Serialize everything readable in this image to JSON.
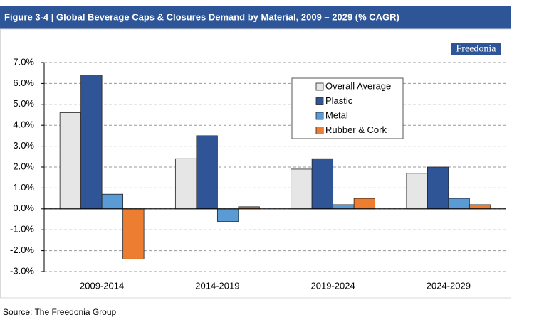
{
  "chart_data": {
    "type": "bar",
    "title": "Figure 3-4 | Global Beverage Caps & Closures Demand by Material, 2009 – 2029 (% CAGR)",
    "logo": "Freedonia",
    "source": "Source: The Freedonia Group",
    "categories": [
      "2009-2014",
      "2014-2019",
      "2019-2024",
      "2024-2029"
    ],
    "series": [
      {
        "name": "Overall Average",
        "color": "#e7e6e6",
        "values": [
          4.6,
          2.4,
          1.9,
          1.7
        ]
      },
      {
        "name": "Plastic",
        "color": "#2f5597",
        "values": [
          6.4,
          3.5,
          2.4,
          2.0
        ]
      },
      {
        "name": "Metal",
        "color": "#5b9bd5",
        "values": [
          0.7,
          -0.6,
          0.2,
          0.5
        ]
      },
      {
        "name": "Rubber & Cork",
        "color": "#ed7d31",
        "values": [
          -2.4,
          0.1,
          0.5,
          0.2
        ]
      }
    ],
    "ylim": [
      -3,
      7
    ],
    "yticks": [
      {
        "value": -3,
        "label": "-3.0%"
      },
      {
        "value": -2,
        "label": "-2.0%"
      },
      {
        "value": -1,
        "label": "-1.0%"
      },
      {
        "value": 0,
        "label": "0.0%"
      },
      {
        "value": 1,
        "label": "1.0%"
      },
      {
        "value": 2,
        "label": "2.0%"
      },
      {
        "value": 3,
        "label": "3.0%"
      },
      {
        "value": 4,
        "label": "4.0%"
      },
      {
        "value": 5,
        "label": "5.0%"
      },
      {
        "value": 6,
        "label": "6.0%"
      },
      {
        "value": 7,
        "label": "7.0%"
      }
    ],
    "grid": true,
    "legend": "top-right"
  }
}
